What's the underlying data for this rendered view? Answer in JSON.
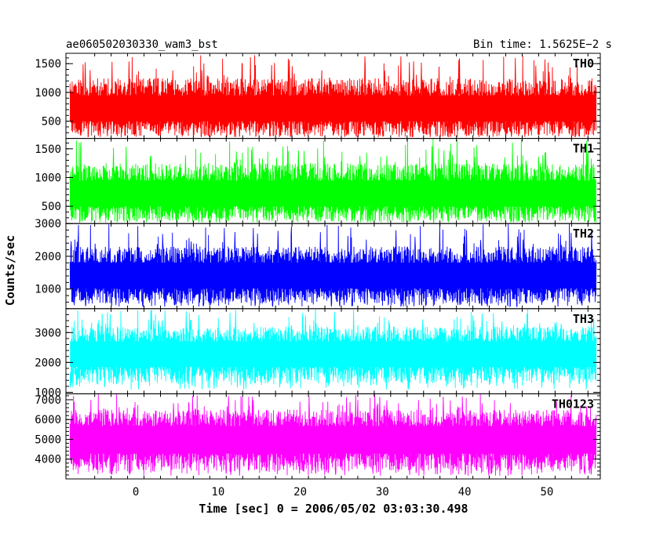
{
  "chart_data": {
    "type": "line",
    "title": "ae060502030330_wam3_bst",
    "subtitle": "Bin time: 1.5625E−2 s",
    "xlabel": "Time [sec] 0 = 2006/05/02 03:03:30.498",
    "ylabel": "Counts/sec",
    "xlim": [
      -8.5,
      56.5
    ],
    "x_ticks": [
      0,
      10,
      20,
      30,
      40,
      50
    ],
    "x_range": [
      -8,
      56
    ],
    "bin_time": 0.015625,
    "legend": "none",
    "grid": false,
    "panels": [
      {
        "name": "TH0",
        "color": "#ff0000",
        "ylim": [
          200,
          1680
        ],
        "y_ticks": [
          500,
          1000,
          1500
        ],
        "baseline": 700,
        "band_low": 250,
        "band_high": 1250,
        "spike_high": 1680
      },
      {
        "name": "TH1",
        "color": "#00ff00",
        "ylim": [
          200,
          1680
        ],
        "y_ticks": [
          500,
          1000,
          1500
        ],
        "baseline": 700,
        "band_low": 250,
        "band_high": 1250,
        "spike_high": 1680
      },
      {
        "name": "TH2",
        "color": "#0000ff",
        "ylim": [
          400,
          3000
        ],
        "y_ticks": [
          1000,
          2000,
          3000
        ],
        "baseline": 1400,
        "band_low": 550,
        "band_high": 2300,
        "spike_high": 3000
      },
      {
        "name": "TH3",
        "color": "#00ffff",
        "ylim": [
          950,
          3800
        ],
        "y_ticks": [
          1000,
          2000,
          3000
        ],
        "baseline": 2300,
        "band_low": 1300,
        "band_high": 3200,
        "spike_high": 3800
      },
      {
        "name": "TH0123",
        "color": "#ff00ff",
        "ylim": [
          3000,
          7300
        ],
        "y_ticks": [
          4000,
          5000,
          6000,
          7000
        ],
        "baseline": 5000,
        "band_low": 3400,
        "band_high": 6500,
        "spike_high": 7300
      }
    ]
  }
}
